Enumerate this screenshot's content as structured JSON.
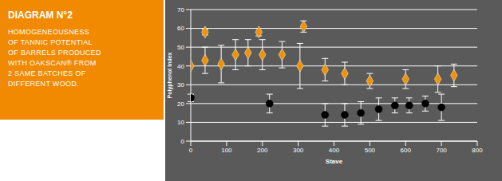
{
  "panel": {
    "title": "DIAGRAM N°2",
    "lines": [
      "HOMOGENEOUSNESS",
      "OF TANNIC POTENTIAL",
      "OF BARRELS PRODUCED",
      "WITH OAKSCAN® FROM",
      "2 SAME BATCHES OF",
      "DIFFERENT WOOD."
    ]
  },
  "chart_data": {
    "type": "scatter",
    "x_label": "Stave",
    "y_label": "Polyphenol Index",
    "xlim": [
      0,
      800
    ],
    "xticks": [
      0,
      100,
      200,
      300,
      400,
      500,
      600,
      700,
      800
    ],
    "ylim": [
      0,
      70
    ],
    "yticks": [
      0,
      10,
      20,
      30,
      40,
      50,
      60,
      70
    ],
    "grid": true,
    "series": [
      {
        "color": "#f39200",
        "marker": "diamond",
        "x": [
          0,
          40,
          40,
          85,
          125,
          160,
          190,
          200,
          255,
          305,
          315,
          375,
          430,
          500,
          600,
          690,
          735
        ],
        "values": [
          40,
          58,
          43,
          41,
          46,
          47,
          58,
          46,
          46,
          40,
          61,
          38,
          36,
          32,
          33,
          33,
          35
        ],
        "errors": [
          0,
          1.5,
          7,
          10,
          8,
          7,
          2,
          8,
          7,
          12,
          3,
          6,
          6,
          4,
          5,
          7,
          6
        ]
      },
      {
        "color": "#000000",
        "marker": "circle",
        "x": [
          0,
          220,
          375,
          430,
          475,
          525,
          570,
          610,
          655,
          700
        ],
        "values": [
          23,
          20,
          14,
          14,
          15,
          17,
          19,
          19,
          20,
          18
        ],
        "errors": [
          2,
          5,
          6,
          6,
          6,
          6,
          4,
          4,
          4,
          7
        ]
      }
    ]
  }
}
